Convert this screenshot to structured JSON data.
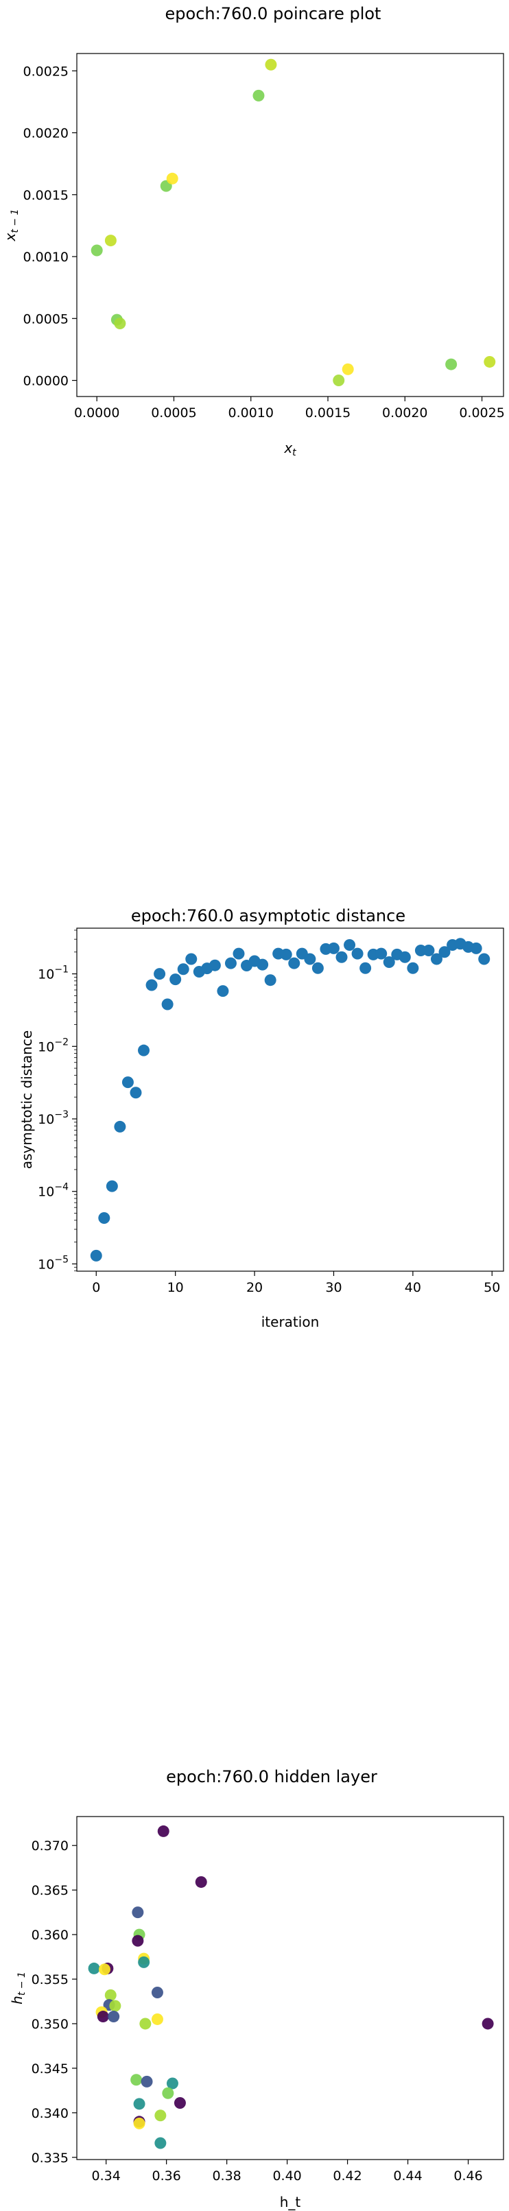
{
  "chart_data": [
    {
      "type": "scatter",
      "title": "epoch:760.0 poincare plot",
      "xlabel": "x_t",
      "ylabel": "x_{t-1}",
      "xlim": [
        -0.00013,
        0.00264
      ],
      "ylim": [
        -0.00013,
        0.00264
      ],
      "xticks": [
        "0.0000",
        "0.0005",
        "0.0010",
        "0.0015",
        "0.0020",
        "0.0025"
      ],
      "yticks": [
        "0.0000",
        "0.0005",
        "0.0010",
        "0.0015",
        "0.0020",
        "0.0025"
      ],
      "grid": false,
      "points": [
        {
          "x": 0.0,
          "y": 0.00105,
          "color": "#7ad151"
        },
        {
          "x": 9e-05,
          "y": 0.00113,
          "color": "#c2df23"
        },
        {
          "x": 0.00013,
          "y": 0.00049,
          "color": "#7ad151"
        },
        {
          "x": 0.00015,
          "y": 0.00046,
          "color": "#a5db36"
        },
        {
          "x": 0.00045,
          "y": 0.00157,
          "color": "#7ad151"
        },
        {
          "x": 0.00049,
          "y": 0.00163,
          "color": "#fde725"
        },
        {
          "x": 0.00105,
          "y": 0.0023,
          "color": "#7ad151"
        },
        {
          "x": 0.00113,
          "y": 0.00255,
          "color": "#c2df23"
        },
        {
          "x": 0.00157,
          "y": 0.0,
          "color": "#a5db36"
        },
        {
          "x": 0.00163,
          "y": 9e-05,
          "color": "#fde725"
        },
        {
          "x": 0.0023,
          "y": 0.00013,
          "color": "#7ad151"
        },
        {
          "x": 0.00255,
          "y": 0.00015,
          "color": "#c2df23"
        }
      ]
    },
    {
      "type": "scatter",
      "title": "epoch:760.0 asymptotic distance",
      "xlabel": "iteration",
      "ylabel": "asymptotic distance",
      "yscale": "log",
      "xlim": [
        -2.45,
        51.45
      ],
      "ylim_log10": [
        -5.1,
        -0.37
      ],
      "xticks": [
        "0",
        "10",
        "20",
        "30",
        "40",
        "50"
      ],
      "yticks": [
        "10^-5",
        "10^-4",
        "10^-3",
        "10^-2",
        "10^-1"
      ],
      "grid": false,
      "color": "#1f77b4",
      "x": [
        0,
        1,
        2,
        3,
        4,
        5,
        6,
        7,
        8,
        9,
        10,
        11,
        12,
        13,
        14,
        15,
        16,
        17,
        18,
        19,
        20,
        21,
        22,
        23,
        24,
        25,
        26,
        27,
        28,
        29,
        30,
        31,
        32,
        33,
        34,
        35,
        36,
        37,
        38,
        39,
        40,
        41,
        42,
        43,
        44,
        45,
        46,
        47,
        48,
        49
      ],
      "y": [
        1.3e-05,
        4.3e-05,
        0.000118,
        0.00078,
        0.0032,
        0.0023,
        0.0088,
        0.07,
        0.1,
        0.038,
        0.084,
        0.116,
        0.16,
        0.107,
        0.119,
        0.131,
        0.058,
        0.14,
        0.19,
        0.13,
        0.15,
        0.134,
        0.082,
        0.19,
        0.185,
        0.14,
        0.19,
        0.16,
        0.12,
        0.22,
        0.225,
        0.17,
        0.25,
        0.19,
        0.12,
        0.185,
        0.19,
        0.145,
        0.185,
        0.17,
        0.12,
        0.21,
        0.21,
        0.16,
        0.2,
        0.25,
        0.26,
        0.235,
        0.225,
        0.16
      ]
    },
    {
      "type": "scatter",
      "title": "epoch:760.0 hidden layer",
      "xlabel": "h_t",
      "ylabel": "h_{t-1}",
      "xlim": [
        0.3303,
        0.4717
      ],
      "ylim": [
        0.33475,
        0.37325
      ],
      "xticks": [
        "0.34",
        "0.36",
        "0.38",
        "0.40",
        "0.42",
        "0.44",
        "0.46"
      ],
      "yticks": [
        "0.335",
        "0.340",
        "0.345",
        "0.350",
        "0.355",
        "0.360",
        "0.365",
        "0.370"
      ],
      "grid": false,
      "points": [
        {
          "x": 0.359,
          "y": 0.3716,
          "color": "#440154"
        },
        {
          "x": 0.3715,
          "y": 0.3659,
          "color": "#440154"
        },
        {
          "x": 0.3505,
          "y": 0.3625,
          "color": "#3b528b"
        },
        {
          "x": 0.351,
          "y": 0.36,
          "color": "#7ad151"
        },
        {
          "x": 0.3505,
          "y": 0.3593,
          "color": "#440154"
        },
        {
          "x": 0.3525,
          "y": 0.3573,
          "color": "#fde725"
        },
        {
          "x": 0.3525,
          "y": 0.3569,
          "color": "#21918c"
        },
        {
          "x": 0.336,
          "y": 0.3562,
          "color": "#21918c"
        },
        {
          "x": 0.3405,
          "y": 0.3562,
          "color": "#440154"
        },
        {
          "x": 0.3395,
          "y": 0.3561,
          "color": "#fde725"
        },
        {
          "x": 0.3415,
          "y": 0.3532,
          "color": "#a5db36"
        },
        {
          "x": 0.341,
          "y": 0.3521,
          "color": "#3b528b"
        },
        {
          "x": 0.343,
          "y": 0.352,
          "color": "#a5db36"
        },
        {
          "x": 0.3385,
          "y": 0.3513,
          "color": "#fde725"
        },
        {
          "x": 0.339,
          "y": 0.3508,
          "color": "#440154"
        },
        {
          "x": 0.3425,
          "y": 0.3508,
          "color": "#3b528b"
        },
        {
          "x": 0.357,
          "y": 0.3505,
          "color": "#fde725"
        },
        {
          "x": 0.353,
          "y": 0.35,
          "color": "#a5db36"
        },
        {
          "x": 0.4665,
          "y": 0.35,
          "color": "#440154"
        },
        {
          "x": 0.357,
          "y": 0.3535,
          "color": "#3b528b"
        },
        {
          "x": 0.35,
          "y": 0.3437,
          "color": "#7ad151"
        },
        {
          "x": 0.3535,
          "y": 0.3435,
          "color": "#3b528b"
        },
        {
          "x": 0.362,
          "y": 0.3433,
          "color": "#21918c"
        },
        {
          "x": 0.3605,
          "y": 0.3422,
          "color": "#7ad151"
        },
        {
          "x": 0.3645,
          "y": 0.3411,
          "color": "#440154"
        },
        {
          "x": 0.351,
          "y": 0.341,
          "color": "#21918c"
        },
        {
          "x": 0.358,
          "y": 0.3397,
          "color": "#a5db36"
        },
        {
          "x": 0.351,
          "y": 0.339,
          "color": "#440154"
        },
        {
          "x": 0.351,
          "y": 0.3388,
          "color": "#fde725"
        },
        {
          "x": 0.358,
          "y": 0.3366,
          "color": "#21918c"
        }
      ]
    }
  ]
}
